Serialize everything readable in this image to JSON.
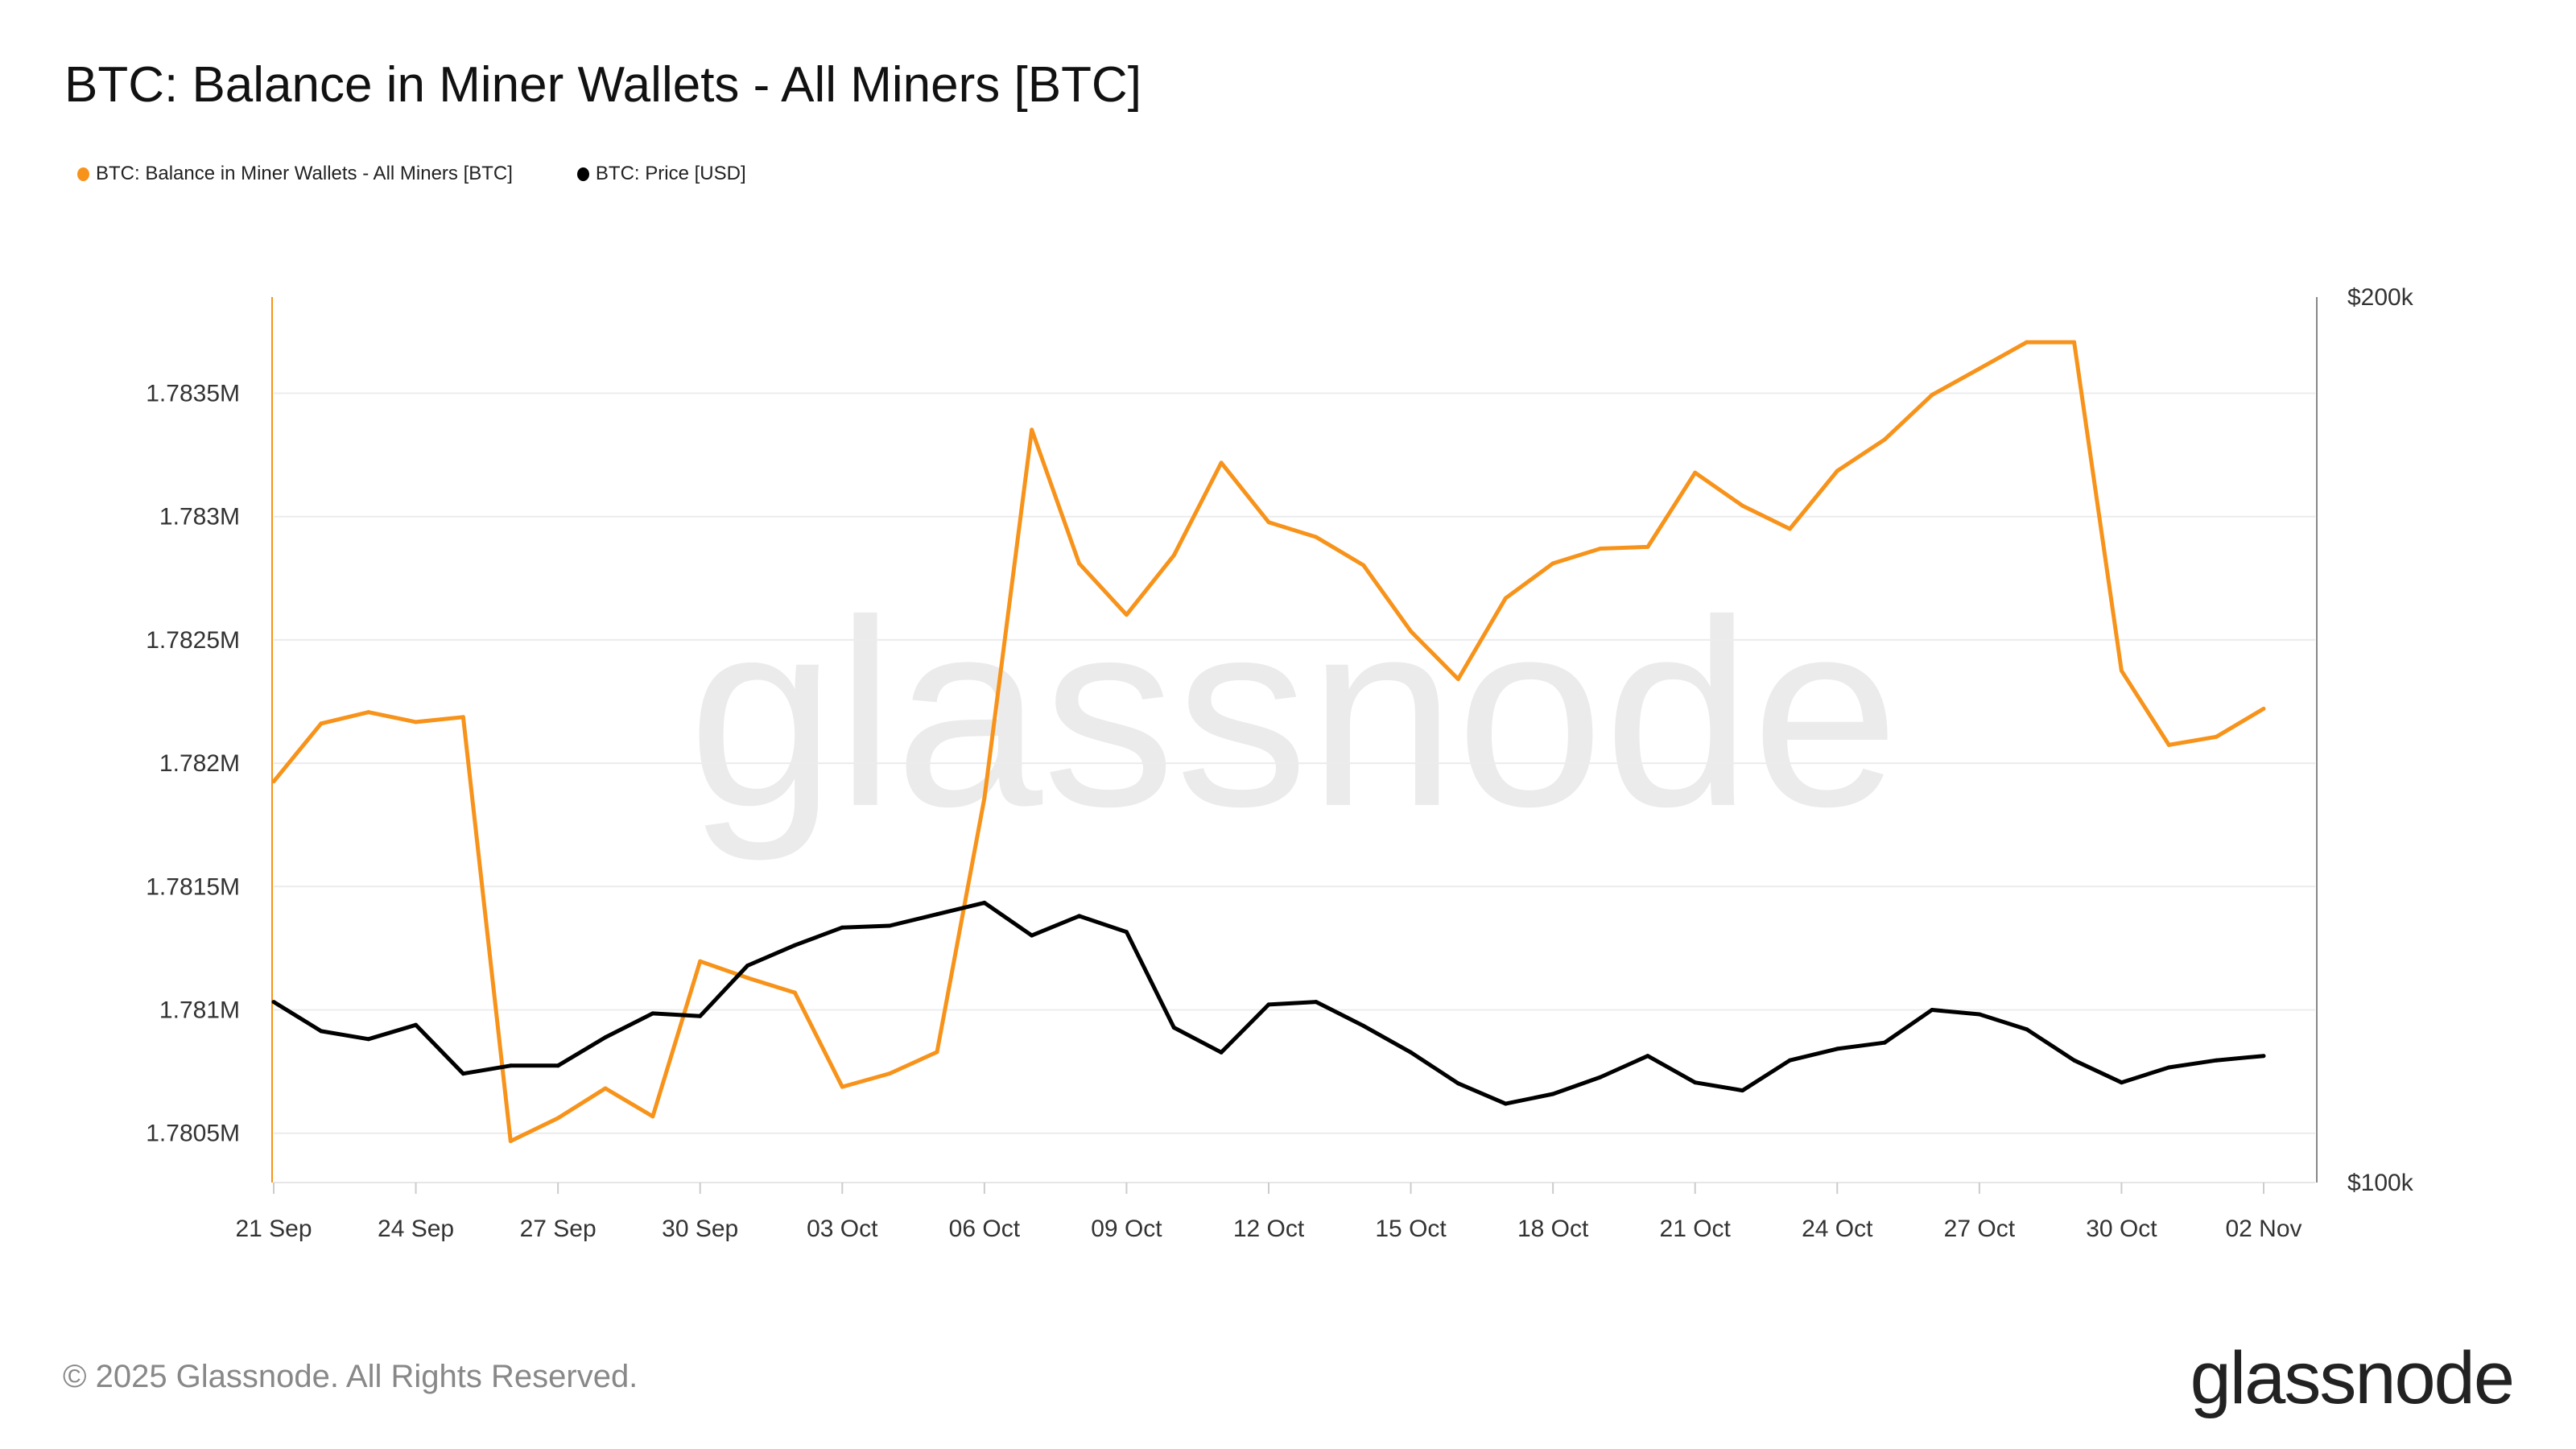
{
  "title": "BTC: Balance in Miner Wallets - All Miners [BTC]",
  "footer": "© 2025 Glassnode. All Rights Reserved.",
  "logo": "glassnode",
  "watermark": "glassnode",
  "chart_data": {
    "type": "line",
    "title": "BTC: Balance in Miner Wallets - All Miners [BTC]",
    "legend_position": "top-left",
    "grid": true,
    "x": [
      "21 Sep",
      "22 Sep",
      "23 Sep",
      "24 Sep",
      "25 Sep",
      "26 Sep",
      "27 Sep",
      "28 Sep",
      "29 Sep",
      "30 Sep",
      "01 Oct",
      "02 Oct",
      "03 Oct",
      "04 Oct",
      "05 Oct",
      "06 Oct",
      "07 Oct",
      "08 Oct",
      "09 Oct",
      "10 Oct",
      "11 Oct",
      "12 Oct",
      "13 Oct",
      "14 Oct",
      "15 Oct",
      "16 Oct",
      "17 Oct",
      "18 Oct",
      "19 Oct",
      "20 Oct",
      "21 Oct",
      "22 Oct",
      "23 Oct",
      "24 Oct",
      "25 Oct",
      "26 Oct",
      "27 Oct",
      "28 Oct",
      "29 Oct",
      "30 Oct",
      "31 Oct",
      "01 Nov",
      "02 Nov"
    ],
    "x_ticks": [
      "21 Sep",
      "24 Sep",
      "27 Sep",
      "30 Sep",
      "03 Oct",
      "06 Oct",
      "09 Oct",
      "12 Oct",
      "15 Oct",
      "18 Oct",
      "21 Oct",
      "24 Oct",
      "27 Oct",
      "30 Oct",
      "02 Nov"
    ],
    "y_left": {
      "ticks": [
        1780500,
        1781000,
        1781500,
        1782000,
        1782500,
        1783000,
        1783500
      ],
      "tick_labels": [
        "1.7805M",
        "1.781M",
        "1.7815M",
        "1.782M",
        "1.7825M",
        "1.783M",
        "1.7835M"
      ],
      "range": [
        1780300,
        1783890
      ]
    },
    "y_right": {
      "ticks": [
        100000,
        200000
      ],
      "tick_labels": [
        "$100k",
        "$200k"
      ],
      "range": [
        100000,
        200000
      ]
    },
    "series": [
      {
        "name": "BTC: Balance in Miner Wallets - All Miners [BTC]",
        "axis": "left",
        "color": "#f7931a",
        "values": [
          1781926,
          1782161,
          1782207,
          1782167,
          1782187,
          1780468,
          1780561,
          1780682,
          1780568,
          1781197,
          1781130,
          1781070,
          1780688,
          1780742,
          1780829,
          1781859,
          1783352,
          1782810,
          1782602,
          1782843,
          1783218,
          1782977,
          1782917,
          1782803,
          1782535,
          1782341,
          1782669,
          1782810,
          1782870,
          1782877,
          1783178,
          1783044,
          1782950,
          1783185,
          1783312,
          1783493,
          1783600,
          1783707,
          1783707,
          1782375,
          1782074,
          1782107,
          1782221
        ]
      },
      {
        "name": "BTC: Price [USD]",
        "axis": "right",
        "color": "#000000",
        "values": [
          120400,
          117100,
          116200,
          117800,
          112300,
          113200,
          113200,
          116400,
          119100,
          118800,
          124500,
          126800,
          128800,
          129000,
          130300,
          131600,
          127900,
          130100,
          128300,
          117500,
          114700,
          120100,
          120400,
          117700,
          114700,
          111200,
          108900,
          110000,
          111900,
          114300,
          111300,
          110400,
          113800,
          115100,
          115800,
          119500,
          119000,
          117300,
          113800,
          111300,
          113000,
          113800,
          114300
        ]
      }
    ]
  }
}
